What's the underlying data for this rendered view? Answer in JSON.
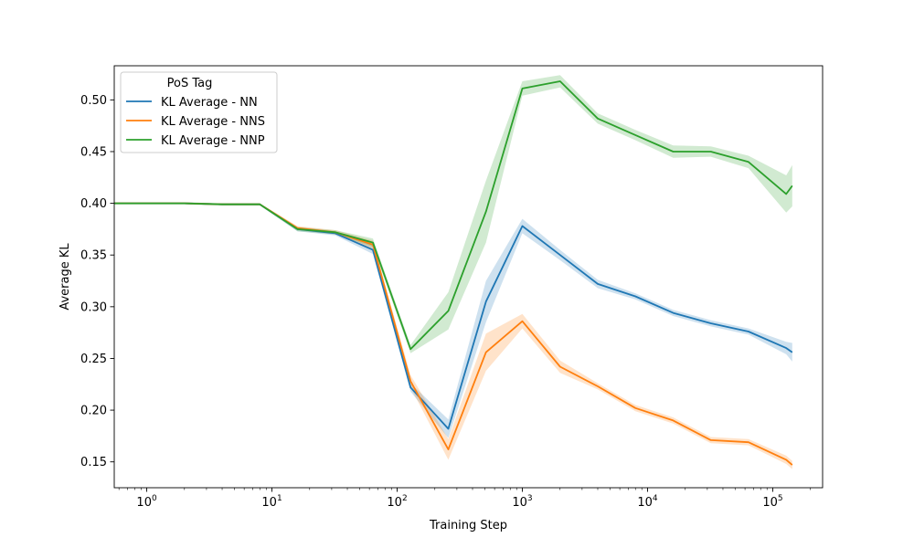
{
  "chart_data": {
    "type": "line",
    "title": "",
    "xlabel": "Training Step",
    "ylabel": "Average KL",
    "xscale": "log",
    "xlim": [
      0.55,
      250000
    ],
    "ylim": [
      0.125,
      0.533
    ],
    "grid": false,
    "x_ticks": [
      {
        "value": 1,
        "base": "10",
        "exp": "0"
      },
      {
        "value": 10,
        "base": "10",
        "exp": "1"
      },
      {
        "value": 100,
        "base": "10",
        "exp": "2"
      },
      {
        "value": 1000,
        "base": "10",
        "exp": "3"
      },
      {
        "value": 10000,
        "base": "10",
        "exp": "4"
      },
      {
        "value": 100000,
        "base": "10",
        "exp": "5"
      }
    ],
    "y_ticks": [
      "0.15",
      "0.20",
      "0.25",
      "0.30",
      "0.35",
      "0.40",
      "0.45",
      "0.50"
    ],
    "legend": {
      "title": "PoS Tag",
      "position": "upper-left"
    },
    "x": [
      0.5,
      1,
      2,
      4,
      8,
      16,
      32,
      64,
      128,
      256,
      512,
      1000,
      2000,
      4000,
      8000,
      16000,
      32000,
      64000,
      128000,
      143000
    ],
    "series": [
      {
        "name": "KL Average - NN",
        "color": "#1f77b4",
        "values": [
          0.4,
          0.4,
          0.4,
          0.399,
          0.399,
          0.375,
          0.371,
          0.355,
          0.222,
          0.182,
          0.305,
          0.378,
          0.35,
          0.322,
          0.31,
          0.294,
          0.284,
          0.276,
          0.26,
          0.256
        ],
        "ci_half": [
          0.001,
          0.001,
          0.001,
          0.001,
          0.001,
          0.002,
          0.002,
          0.004,
          0.004,
          0.009,
          0.02,
          0.007,
          0.005,
          0.004,
          0.003,
          0.003,
          0.003,
          0.003,
          0.006,
          0.009
        ]
      },
      {
        "name": "KL Average - NNS",
        "color": "#ff7f0e",
        "values": [
          0.4,
          0.4,
          0.4,
          0.399,
          0.399,
          0.376,
          0.372,
          0.36,
          0.228,
          0.162,
          0.256,
          0.286,
          0.242,
          0.223,
          0.202,
          0.19,
          0.171,
          0.169,
          0.152,
          0.147
        ],
        "ci_half": [
          0.001,
          0.001,
          0.001,
          0.001,
          0.001,
          0.002,
          0.002,
          0.004,
          0.006,
          0.01,
          0.018,
          0.007,
          0.006,
          0.003,
          0.003,
          0.003,
          0.003,
          0.003,
          0.004,
          0.004
        ]
      },
      {
        "name": "KL Average - NNP",
        "color": "#2ca02c",
        "values": [
          0.4,
          0.4,
          0.4,
          0.399,
          0.399,
          0.375,
          0.372,
          0.362,
          0.259,
          0.296,
          0.392,
          0.511,
          0.518,
          0.482,
          0.466,
          0.45,
          0.45,
          0.44,
          0.409,
          0.417
        ],
        "ci_half": [
          0.001,
          0.001,
          0.001,
          0.001,
          0.001,
          0.002,
          0.002,
          0.004,
          0.004,
          0.018,
          0.03,
          0.007,
          0.006,
          0.005,
          0.005,
          0.006,
          0.005,
          0.006,
          0.018,
          0.02
        ]
      }
    ]
  }
}
